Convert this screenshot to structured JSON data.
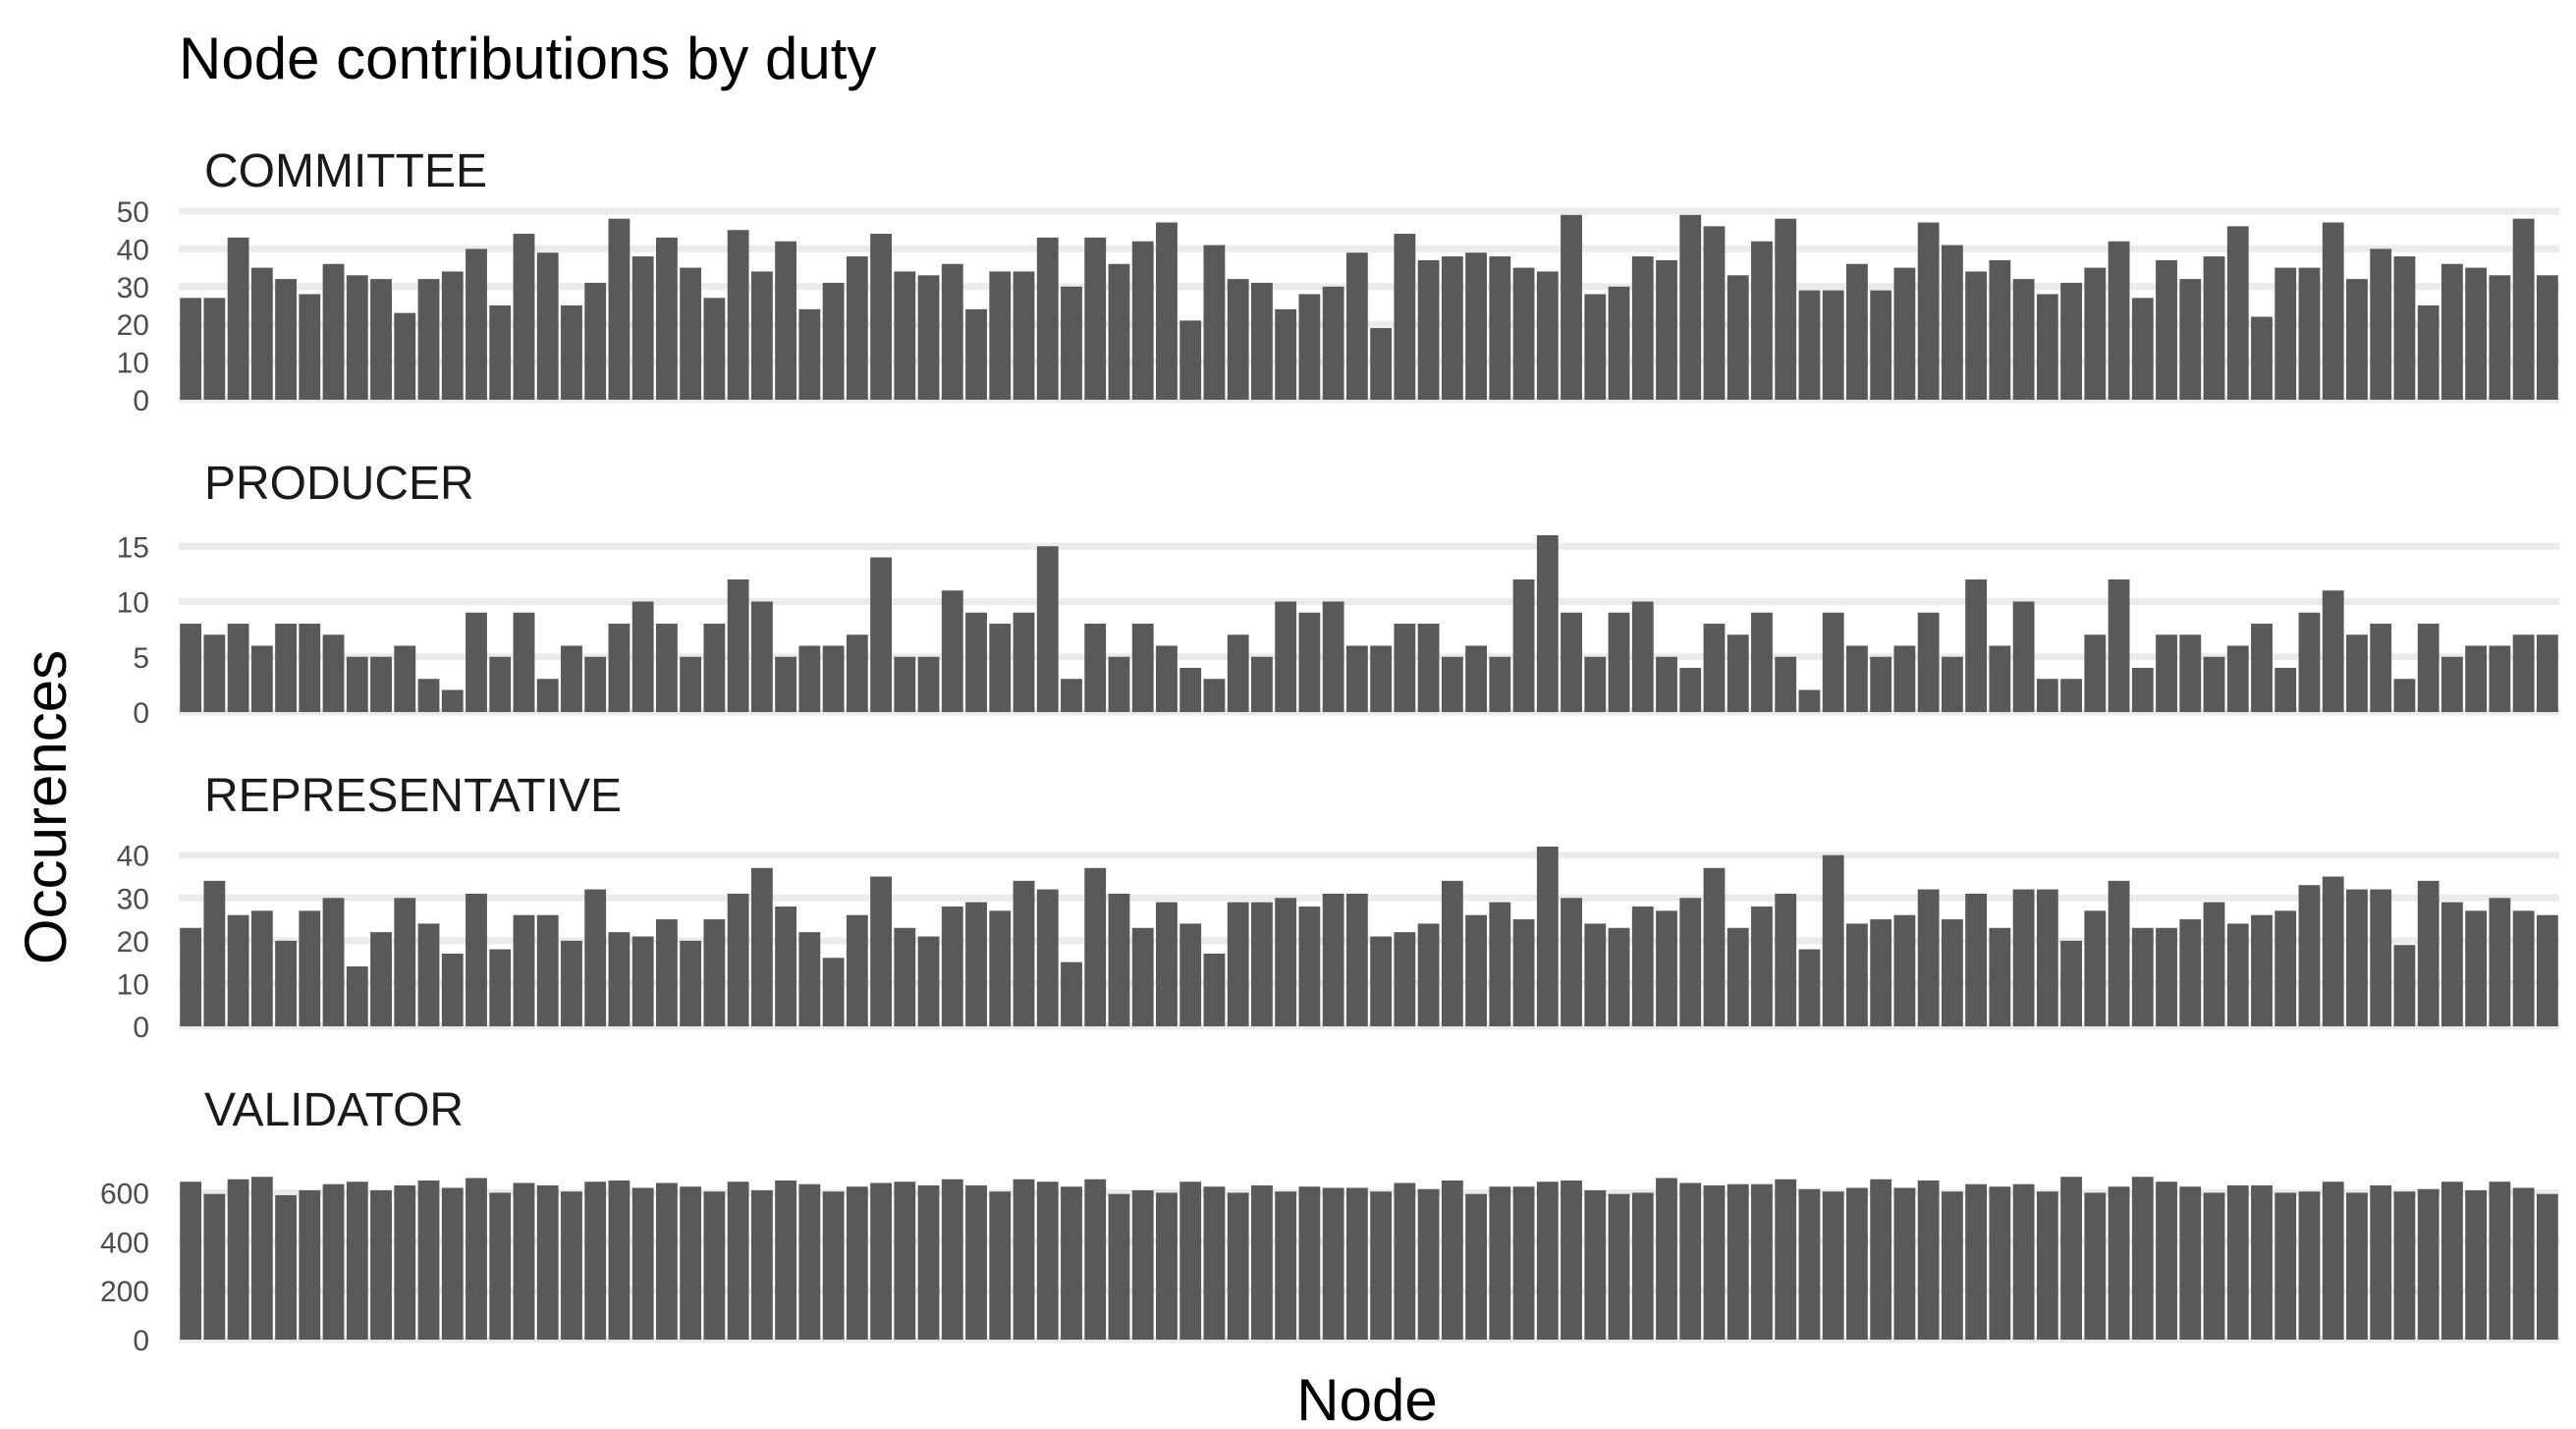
{
  "chart_data": {
    "type": "bar",
    "title": "Node contributions by duty",
    "xlabel": "Node",
    "ylabel": "Occurences",
    "bar_color": "#595959",
    "grid_color": "#ebebeb",
    "grid": true,
    "x_tick_labels": false,
    "layout": "facets stacked vertically, shared x axis",
    "facets": [
      {
        "name": "COMMITTEE",
        "ylim": [
          0,
          50
        ],
        "yticks": [
          0,
          10,
          20,
          30,
          40,
          50
        ],
        "values": [
          27,
          27,
          43,
          35,
          32,
          28,
          36,
          33,
          32,
          23,
          32,
          34,
          40,
          25,
          44,
          39,
          25,
          31,
          48,
          38,
          43,
          35,
          27,
          45,
          34,
          42,
          24,
          31,
          38,
          44,
          34,
          33,
          36,
          24,
          34,
          34,
          43,
          30,
          43,
          36,
          42,
          47,
          21,
          41,
          32,
          31,
          24,
          28,
          30,
          39,
          19,
          44,
          37,
          38,
          39,
          38,
          35,
          34,
          49,
          28,
          30,
          38,
          37,
          49,
          46,
          33,
          42,
          48,
          29,
          29,
          36,
          29,
          35,
          47,
          41,
          34,
          37,
          32,
          28,
          31,
          35,
          42,
          27,
          37,
          32,
          38,
          46,
          22,
          35,
          35,
          47,
          32,
          40,
          38,
          25,
          36,
          35,
          33,
          48,
          33
        ]
      },
      {
        "name": "PRODUCER",
        "ylim": [
          0,
          16
        ],
        "yticks": [
          0,
          5,
          10,
          15
        ],
        "values": [
          8,
          7,
          8,
          6,
          8,
          8,
          7,
          5,
          5,
          6,
          3,
          2,
          9,
          5,
          9,
          3,
          6,
          5,
          8,
          10,
          8,
          5,
          8,
          12,
          10,
          5,
          6,
          6,
          7,
          14,
          5,
          5,
          11,
          9,
          8,
          9,
          15,
          3,
          8,
          5,
          8,
          6,
          4,
          3,
          7,
          5,
          10,
          9,
          10,
          6,
          6,
          8,
          8,
          5,
          6,
          5,
          12,
          16,
          9,
          5,
          9,
          10,
          5,
          4,
          8,
          7,
          9,
          5,
          2,
          9,
          6,
          5,
          6,
          9,
          5,
          12,
          6,
          10,
          3,
          3,
          7,
          12,
          4,
          7,
          7,
          5,
          6,
          8,
          4,
          9,
          11,
          7,
          8,
          3,
          8,
          5,
          6,
          6,
          7,
          7
        ]
      },
      {
        "name": "REPRESENTATIVE",
        "ylim": [
          0,
          42
        ],
        "yticks": [
          0,
          10,
          20,
          30,
          40
        ],
        "values": [
          23,
          34,
          26,
          27,
          20,
          27,
          30,
          14,
          22,
          30,
          24,
          17,
          31,
          18,
          26,
          26,
          20,
          32,
          22,
          21,
          25,
          20,
          25,
          31,
          37,
          28,
          22,
          16,
          26,
          35,
          23,
          21,
          28,
          29,
          27,
          34,
          32,
          15,
          37,
          31,
          23,
          29,
          24,
          17,
          29,
          29,
          30,
          28,
          31,
          31,
          21,
          22,
          24,
          34,
          26,
          29,
          25,
          42,
          30,
          24,
          23,
          28,
          27,
          30,
          37,
          23,
          28,
          31,
          18,
          40,
          24,
          25,
          26,
          32,
          25,
          31,
          23,
          32,
          32,
          20,
          27,
          34,
          23,
          23,
          25,
          29,
          24,
          26,
          27,
          33,
          35,
          32,
          32,
          19,
          34,
          29,
          27,
          30,
          27,
          26
        ]
      },
      {
        "name": "VALIDATOR",
        "ylim": [
          0,
          670
        ],
        "yticks": [
          0,
          200,
          400,
          600
        ],
        "values": [
          645,
          595,
          655,
          665,
          590,
          610,
          635,
          645,
          610,
          630,
          650,
          620,
          660,
          600,
          640,
          630,
          605,
          645,
          650,
          620,
          640,
          625,
          605,
          645,
          610,
          650,
          635,
          605,
          625,
          640,
          645,
          630,
          655,
          630,
          605,
          655,
          645,
          625,
          655,
          595,
          610,
          600,
          645,
          625,
          600,
          630,
          605,
          625,
          620,
          620,
          605,
          640,
          615,
          650,
          595,
          625,
          625,
          645,
          650,
          610,
          595,
          600,
          660,
          640,
          630,
          635,
          635,
          655,
          615,
          605,
          620,
          655,
          620,
          650,
          605,
          635,
          625,
          635,
          605,
          665,
          600,
          625,
          665,
          645,
          625,
          600,
          630,
          630,
          600,
          605,
          645,
          600,
          630,
          605,
          615,
          645,
          610,
          645,
          620,
          595
        ]
      }
    ]
  }
}
